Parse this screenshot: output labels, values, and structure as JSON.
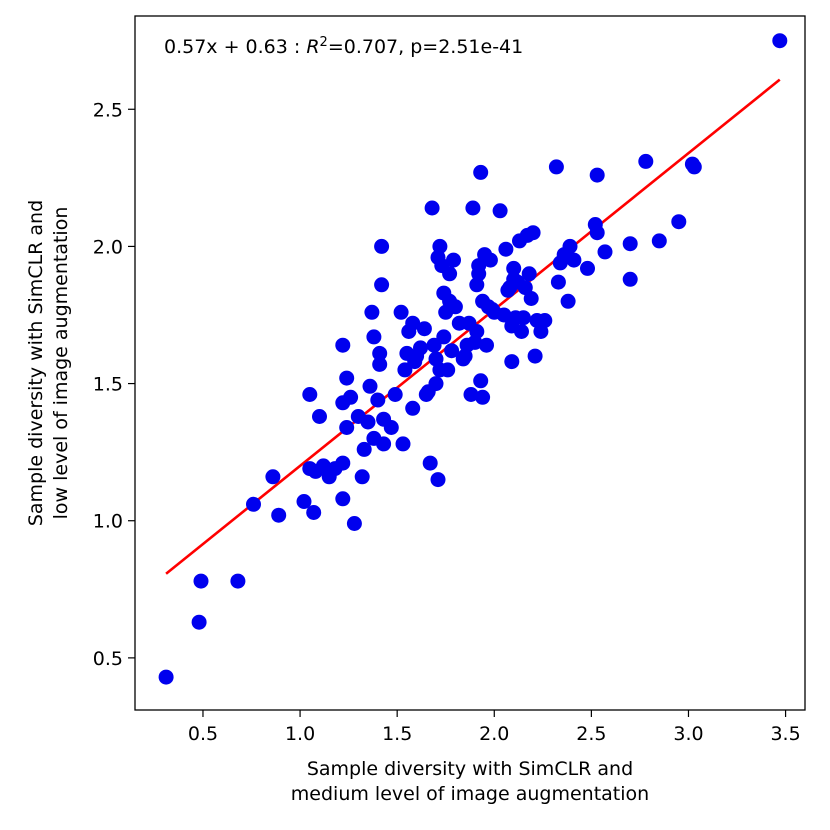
{
  "chart_data": {
    "type": "scatter",
    "title": "",
    "xlabel": [
      "Sample diversity with SimCLR and",
      "medium level of image augmentation"
    ],
    "ylabel": [
      "Sample diversity with SimCLR and",
      "low level of image augmentation"
    ],
    "xlim": [
      0.15,
      3.6
    ],
    "ylim": [
      0.31,
      2.84
    ],
    "xticks": [
      0.5,
      1.0,
      1.5,
      2.0,
      2.5,
      3.0,
      3.5
    ],
    "xtick_labels": [
      "0.5",
      "1.0",
      "1.5",
      "2.0",
      "2.5",
      "3.0",
      "3.5"
    ],
    "yticks": [
      0.5,
      1.0,
      1.5,
      2.0,
      2.5
    ],
    "ytick_labels": [
      "0.5",
      "1.0",
      "1.5",
      "2.0",
      "2.5"
    ],
    "grid": false,
    "annotation": {
      "prefix": "0.57x + 0.63 : ",
      "r_symbol": "R",
      "r_exp": "2",
      "suffix": "=0.707, p=2.51e-41"
    },
    "fit_line": {
      "slope": 0.57,
      "intercept": 0.63,
      "x_range": [
        0.31,
        3.47
      ],
      "color": "#ff0000"
    },
    "point_color": "#0000ee",
    "series": [
      {
        "name": "samples",
        "points": [
          [
            0.31,
            0.43
          ],
          [
            0.48,
            0.63
          ],
          [
            0.49,
            0.78
          ],
          [
            0.68,
            0.78
          ],
          [
            0.76,
            1.06
          ],
          [
            0.86,
            1.16
          ],
          [
            0.89,
            1.02
          ],
          [
            1.02,
            1.07
          ],
          [
            1.05,
            1.46
          ],
          [
            1.05,
            1.19
          ],
          [
            1.07,
            1.03
          ],
          [
            1.08,
            1.18
          ],
          [
            1.1,
            1.38
          ],
          [
            1.12,
            1.2
          ],
          [
            1.15,
            1.16
          ],
          [
            1.18,
            1.19
          ],
          [
            1.22,
            1.64
          ],
          [
            1.22,
            1.21
          ],
          [
            1.22,
            1.08
          ],
          [
            1.22,
            1.43
          ],
          [
            1.24,
            1.52
          ],
          [
            1.24,
            1.34
          ],
          [
            1.26,
            1.45
          ],
          [
            1.28,
            0.99
          ],
          [
            1.3,
            1.38
          ],
          [
            1.32,
            1.16
          ],
          [
            1.33,
            1.26
          ],
          [
            1.35,
            1.36
          ],
          [
            1.36,
            1.49
          ],
          [
            1.37,
            1.76
          ],
          [
            1.38,
            1.3
          ],
          [
            1.38,
            1.67
          ],
          [
            1.4,
            1.44
          ],
          [
            1.41,
            1.61
          ],
          [
            1.41,
            1.57
          ],
          [
            1.42,
            1.86
          ],
          [
            1.42,
            2.0
          ],
          [
            1.43,
            1.28
          ],
          [
            1.43,
            1.37
          ],
          [
            1.47,
            1.34
          ],
          [
            1.49,
            1.46
          ],
          [
            1.52,
            1.76
          ],
          [
            1.53,
            1.28
          ],
          [
            1.54,
            1.55
          ],
          [
            1.55,
            1.61
          ],
          [
            1.56,
            1.69
          ],
          [
            1.58,
            1.72
          ],
          [
            1.58,
            1.41
          ],
          [
            1.59,
            1.58
          ],
          [
            1.6,
            1.6
          ],
          [
            1.62,
            1.63
          ],
          [
            1.64,
            1.7
          ],
          [
            1.65,
            1.46
          ],
          [
            1.66,
            1.47
          ],
          [
            1.67,
            1.21
          ],
          [
            1.68,
            2.14
          ],
          [
            1.69,
            1.64
          ],
          [
            1.7,
            1.5
          ],
          [
            1.7,
            1.59
          ],
          [
            1.71,
            1.96
          ],
          [
            1.71,
            1.15
          ],
          [
            1.72,
            1.55
          ],
          [
            1.72,
            2.0
          ],
          [
            1.73,
            1.93
          ],
          [
            1.74,
            1.83
          ],
          [
            1.74,
            1.67
          ],
          [
            1.75,
            1.76
          ],
          [
            1.76,
            1.55
          ],
          [
            1.77,
            1.9
          ],
          [
            1.77,
            1.8
          ],
          [
            1.78,
            1.62
          ],
          [
            1.79,
            1.95
          ],
          [
            1.8,
            1.78
          ],
          [
            1.82,
            1.72
          ],
          [
            1.84,
            1.59
          ],
          [
            1.85,
            1.6
          ],
          [
            1.86,
            1.64
          ],
          [
            1.87,
            1.72
          ],
          [
            1.88,
            1.46
          ],
          [
            1.89,
            2.14
          ],
          [
            1.9,
            1.65
          ],
          [
            1.91,
            1.69
          ],
          [
            1.91,
            1.86
          ],
          [
            1.92,
            1.9
          ],
          [
            1.92,
            1.93
          ],
          [
            1.93,
            2.27
          ],
          [
            1.93,
            1.51
          ],
          [
            1.94,
            1.8
          ],
          [
            1.94,
            1.45
          ],
          [
            1.95,
            1.97
          ],
          [
            1.96,
            1.64
          ],
          [
            1.97,
            1.78
          ],
          [
            1.98,
            1.95
          ],
          [
            1.99,
            1.77
          ],
          [
            2.0,
            1.76
          ],
          [
            2.03,
            2.13
          ],
          [
            2.05,
            1.75
          ],
          [
            2.06,
            1.99
          ],
          [
            2.07,
            1.84
          ],
          [
            2.08,
            1.85
          ],
          [
            2.09,
            1.71
          ],
          [
            2.09,
            1.58
          ],
          [
            2.1,
            1.92
          ],
          [
            2.1,
            1.88
          ],
          [
            2.11,
            1.74
          ],
          [
            2.12,
            1.87
          ],
          [
            2.13,
            2.02
          ],
          [
            2.14,
            1.69
          ],
          [
            2.15,
            1.74
          ],
          [
            2.16,
            1.85
          ],
          [
            2.17,
            2.04
          ],
          [
            2.18,
            1.9
          ],
          [
            2.19,
            1.81
          ],
          [
            2.2,
            2.05
          ],
          [
            2.21,
            1.6
          ],
          [
            2.22,
            1.73
          ],
          [
            2.24,
            1.69
          ],
          [
            2.26,
            1.73
          ],
          [
            2.32,
            2.29
          ],
          [
            2.33,
            1.87
          ],
          [
            2.34,
            1.94
          ],
          [
            2.36,
            1.97
          ],
          [
            2.38,
            1.8
          ],
          [
            2.39,
            2.0
          ],
          [
            2.41,
            1.95
          ],
          [
            2.48,
            1.92
          ],
          [
            2.52,
            2.08
          ],
          [
            2.53,
            2.05
          ],
          [
            2.53,
            2.26
          ],
          [
            2.57,
            1.98
          ],
          [
            2.7,
            2.01
          ],
          [
            2.7,
            1.88
          ],
          [
            2.78,
            2.31
          ],
          [
            2.85,
            2.02
          ],
          [
            2.95,
            2.09
          ],
          [
            3.02,
            2.3
          ],
          [
            3.03,
            2.29
          ],
          [
            3.47,
            2.75
          ]
        ]
      }
    ]
  }
}
